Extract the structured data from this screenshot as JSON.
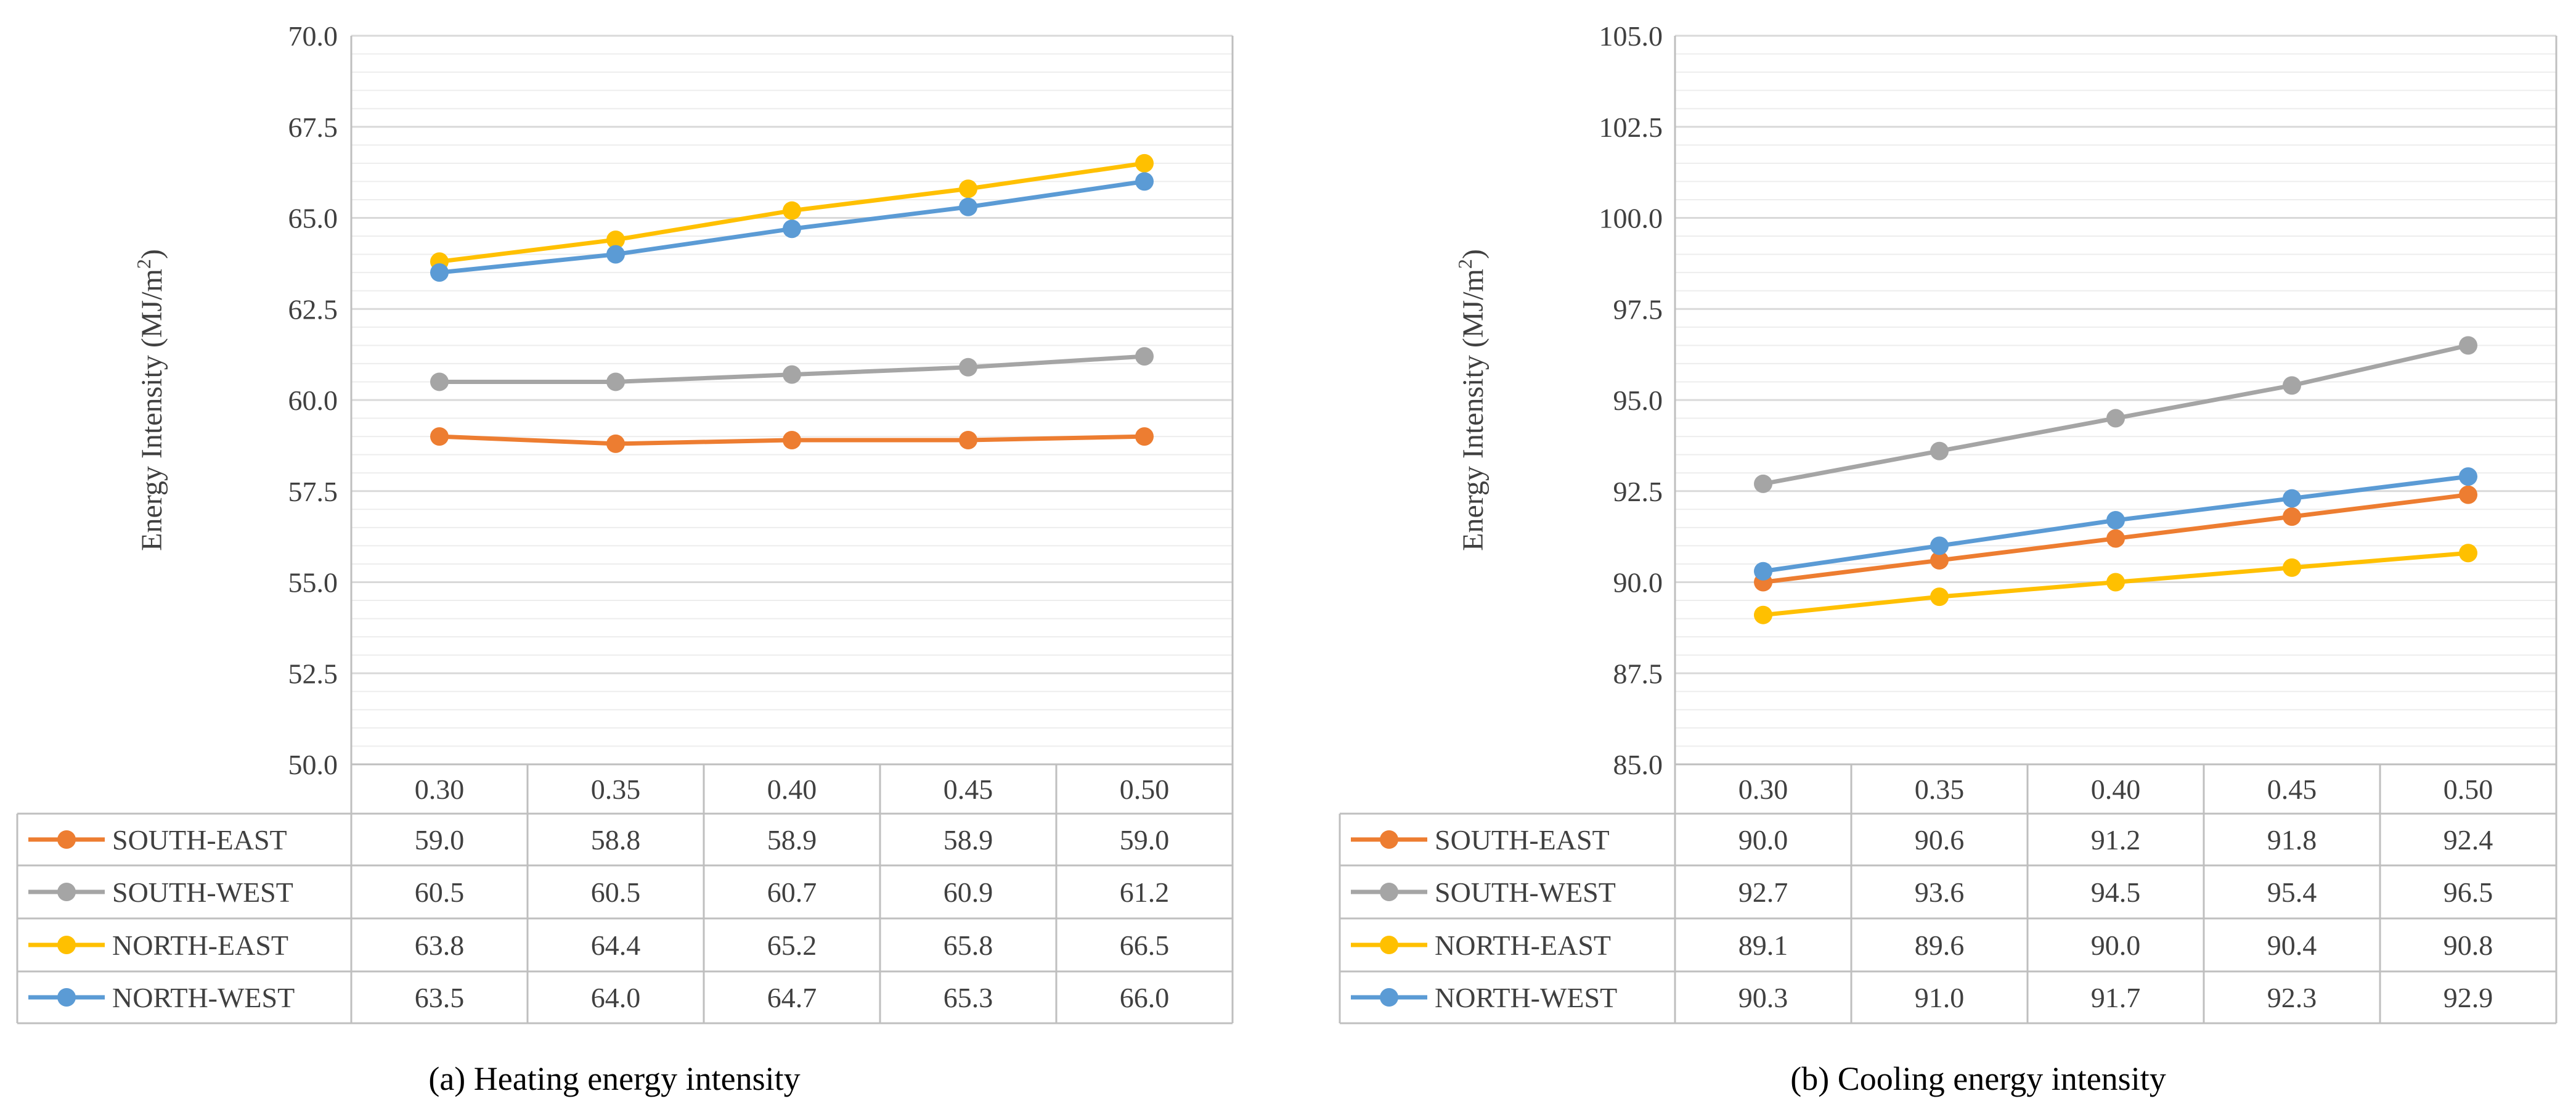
{
  "chart_data": [
    {
      "type": "line",
      "caption": "(a) Heating energy intensity",
      "ylabel": "Energy Intensity (MJ/m",
      "ylabel_sup": "2",
      "ylabel_close": ")",
      "ylim": [
        50.0,
        70.0
      ],
      "ytick_values": [
        50.0,
        52.5,
        55.0,
        57.5,
        60.0,
        62.5,
        65.0,
        67.5,
        70.0
      ],
      "yticks": [
        "50.0",
        "52.5",
        "55.0",
        "57.5",
        "60.0",
        "62.5",
        "65.0",
        "67.5",
        "70.0"
      ],
      "categories": [
        "0.30",
        "0.35",
        "0.40",
        "0.45",
        "0.50"
      ],
      "series": [
        {
          "name": "SOUTH-EAST",
          "color": "#ED7D31",
          "values": [
            59.0,
            58.8,
            58.9,
            58.9,
            59.0
          ]
        },
        {
          "name": "SOUTH-WEST",
          "color": "#A5A5A5",
          "values": [
            60.5,
            60.5,
            60.7,
            60.9,
            61.2
          ]
        },
        {
          "name": "NORTH-EAST",
          "color": "#FFC000",
          "values": [
            63.8,
            64.4,
            65.2,
            65.8,
            66.5
          ]
        },
        {
          "name": "NORTH-WEST",
          "color": "#5B9BD5",
          "values": [
            63.5,
            64.0,
            64.7,
            65.3,
            66.0
          ]
        }
      ],
      "table_values": [
        [
          "59.0",
          "58.8",
          "58.9",
          "58.9",
          "59.0"
        ],
        [
          "60.5",
          "60.5",
          "60.7",
          "60.9",
          "61.2"
        ],
        [
          "63.8",
          "64.4",
          "65.2",
          "65.8",
          "66.5"
        ],
        [
          "63.5",
          "64.0",
          "64.7",
          "65.3",
          "66.0"
        ]
      ]
    },
    {
      "type": "line",
      "caption": "(b) Cooling energy intensity",
      "ylabel": "Energy Intensity (MJ/m",
      "ylabel_sup": "2",
      "ylabel_close": ")",
      "ylim": [
        85.0,
        105.0
      ],
      "ytick_values": [
        85.0,
        87.5,
        90.0,
        92.5,
        95.0,
        97.5,
        100.0,
        102.5,
        105.0
      ],
      "yticks": [
        "85.0",
        "87.5",
        "90.0",
        "92.5",
        "95.0",
        "97.5",
        "100.0",
        "102.5",
        "105.0"
      ],
      "categories": [
        "0.30",
        "0.35",
        "0.40",
        "0.45",
        "0.50"
      ],
      "series": [
        {
          "name": "SOUTH-EAST",
          "color": "#ED7D31",
          "values": [
            90.0,
            90.6,
            91.2,
            91.8,
            92.4
          ]
        },
        {
          "name": "SOUTH-WEST",
          "color": "#A5A5A5",
          "values": [
            92.7,
            93.6,
            94.5,
            95.4,
            96.5
          ]
        },
        {
          "name": "NORTH-EAST",
          "color": "#FFC000",
          "values": [
            89.1,
            89.6,
            90.0,
            90.4,
            90.8
          ]
        },
        {
          "name": "NORTH-WEST",
          "color": "#5B9BD5",
          "values": [
            90.3,
            91.0,
            91.7,
            92.3,
            92.9
          ]
        }
      ],
      "table_values": [
        [
          "90.0",
          "90.6",
          "91.2",
          "91.8",
          "92.4"
        ],
        [
          "92.7",
          "93.6",
          "94.5",
          "95.4",
          "96.5"
        ],
        [
          "89.1",
          "89.6",
          "90.0",
          "90.4",
          "90.8"
        ],
        [
          "90.3",
          "91.0",
          "91.7",
          "92.3",
          "92.9"
        ]
      ]
    }
  ]
}
